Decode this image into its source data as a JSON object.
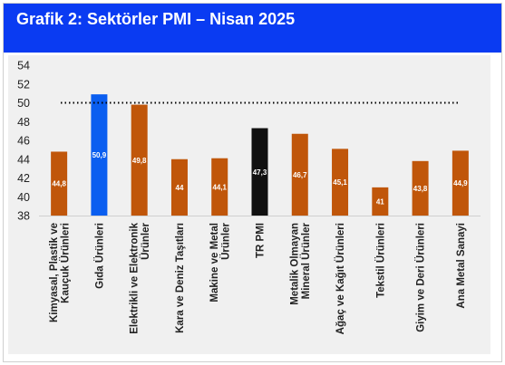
{
  "header": {
    "title": "Grafik 2: Sektörler PMI – Nisan 2025"
  },
  "colors": {
    "header_bg": "#0a3bf2",
    "sector": "#c0560a",
    "gida": "#0a5ef0",
    "tr_pmi": "#111111",
    "panel_bg": "#f0f0f0",
    "threshold_line": "#000000"
  },
  "chart_data": {
    "type": "bar",
    "title": "Grafik 2: Sektörler PMI – Nisan 2025",
    "categories": [
      [
        "Kimyasal, Plastik ve",
        "Kauçuk Ürünleri"
      ],
      [
        "Gıda Ürünleri"
      ],
      [
        "Elektrikli ve Elektronik",
        "Ürünler"
      ],
      [
        "Kara ve Deniz Taşıtları"
      ],
      [
        "Makine ve Metal",
        "Ürünler"
      ],
      [
        "TR PMI"
      ],
      [
        "Metalik Olmayan",
        "Mineral Ürünler"
      ],
      [
        "Ağaç ve Kağıt Ürünleri"
      ],
      [
        "Tekstil Ürünleri"
      ],
      [
        "Giyim ve Deri Ürünleri"
      ],
      [
        "Ana Metal Sanayi"
      ]
    ],
    "values": [
      44.8,
      50.9,
      49.8,
      44,
      44.1,
      47.3,
      46.7,
      45.1,
      41,
      43.8,
      44.9
    ],
    "data_labels": [
      "44,8",
      "50,9",
      "49,8",
      "44",
      "44,1",
      "47,3",
      "46,7",
      "45,1",
      "41",
      "43,8",
      "44,9"
    ],
    "bar_colors": [
      "#c0560a",
      "#0a5ef0",
      "#c0560a",
      "#c0560a",
      "#c0560a",
      "#111111",
      "#c0560a",
      "#c0560a",
      "#c0560a",
      "#c0560a",
      "#c0560a"
    ],
    "ylim": [
      38,
      54
    ],
    "yticks": [
      38,
      40,
      42,
      44,
      46,
      48,
      50,
      52,
      54
    ],
    "reference_line": {
      "value": 50,
      "style": "dotted"
    },
    "xlabel": "",
    "ylabel": "",
    "grid": false,
    "legend": "none"
  }
}
